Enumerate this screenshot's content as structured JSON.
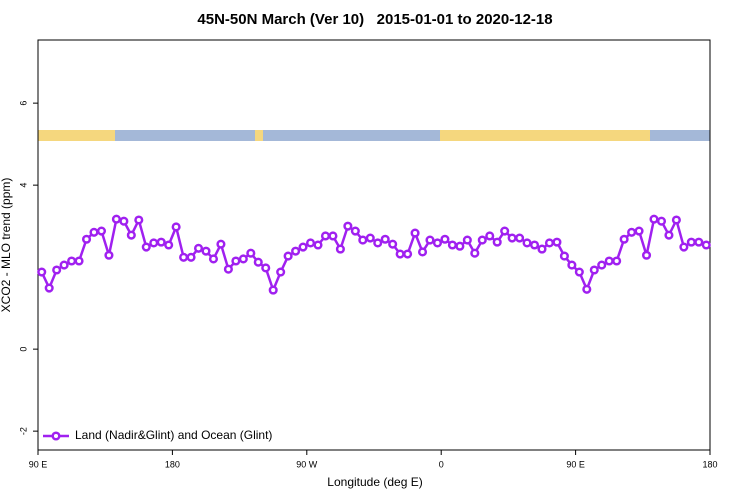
{
  "chart_data": {
    "type": "line",
    "title": "45N-50N March (Ver 10)   2015-01-01 to 2020-12-18",
    "x_label": "Longitude (deg E)",
    "y_label": "XCO2 - MLO trend (ppm)",
    "x": [
      92.5,
      97.5,
      102.5,
      107.5,
      112.5,
      117.5,
      122.5,
      127.5,
      132.5,
      137.5,
      142.5,
      147.5,
      152.5,
      157.5,
      162.5,
      167.5,
      172.5,
      177.5,
      182.5,
      187.5,
      192.5,
      197.5,
      202.5,
      207.5,
      212.5,
      217.5,
      222.5,
      227.5,
      232.5,
      237.5,
      242.5,
      247.5,
      252.5,
      257.5,
      262.5,
      267.5,
      272.5,
      277.5,
      282.5,
      287.5,
      292.5,
      297.5,
      302.5,
      307.5,
      312.5,
      317.5,
      322.5,
      327.5,
      332.5,
      337.5,
      342.5,
      347.5,
      352.5,
      357.5,
      362.5,
      367.5,
      372.5,
      377.5,
      382.5,
      387.5,
      392.5,
      397.5,
      402.5,
      407.5,
      412.5,
      417.5,
      422.5,
      427.5,
      432.5,
      437.5,
      442.5,
      447.5,
      452.5,
      457.5,
      462.5,
      467.5,
      472.5,
      477.5,
      482.5,
      487.5,
      492.5,
      497.5,
      502.5,
      507.5,
      512.5,
      517.5,
      522.5,
      527.5,
      532.5,
      537.5
    ],
    "series": [
      {
        "name": "Land (Nadir&Glint) and Ocean (Glint)",
        "color": "#a020f0",
        "values": [
          1.88,
          1.49,
          1.93,
          2.05,
          2.15,
          2.15,
          2.68,
          2.85,
          2.88,
          2.29,
          3.17,
          3.12,
          2.78,
          3.15,
          2.49,
          2.59,
          2.61,
          2.54,
          2.98,
          2.24,
          2.24,
          2.46,
          2.39,
          2.2,
          2.56,
          1.95,
          2.15,
          2.2,
          2.34,
          2.12,
          1.98,
          1.44,
          1.88,
          2.27,
          2.39,
          2.49,
          2.59,
          2.54,
          2.76,
          2.76,
          2.44,
          3.0,
          2.88,
          2.66,
          2.71,
          2.59,
          2.68,
          2.56,
          2.32,
          2.32,
          2.83,
          2.37,
          2.66,
          2.59,
          2.68,
          2.54,
          2.51,
          2.66,
          2.34,
          2.66,
          2.76,
          2.61,
          2.88,
          2.71,
          2.71,
          2.59,
          2.54,
          2.44,
          2.59,
          2.61,
          2.27,
          2.05,
          1.88,
          1.46,
          1.93,
          2.05,
          2.15,
          2.15,
          2.68,
          2.85,
          2.88,
          2.29,
          3.17,
          3.12,
          2.78,
          3.15,
          2.49,
          2.61,
          2.61,
          2.54
        ]
      }
    ],
    "xlim": [
      90,
      540
    ],
    "xticks": [
      {
        "value": 90,
        "label": "90 E"
      },
      180,
      {
        "value": 270,
        "label": "90 W"
      },
      {
        "value": 360,
        "label": "0"
      },
      {
        "value": 450,
        "label": "90 E"
      },
      {
        "value": 540,
        "label": "180"
      }
    ],
    "ylim": [
      -2.46,
      7.54
    ],
    "yticks": [
      -2,
      0,
      4,
      6
    ],
    "legend": "lower left"
  }
}
